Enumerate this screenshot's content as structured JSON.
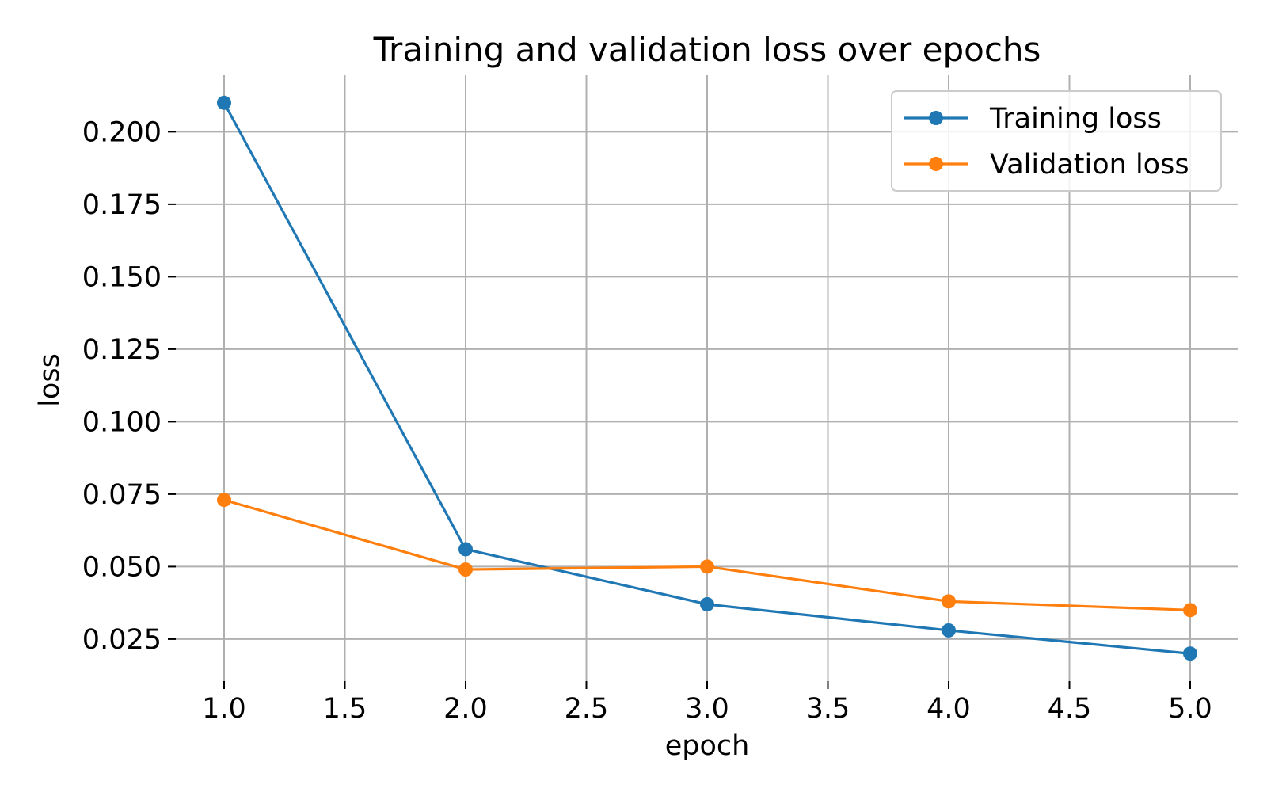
{
  "chart_data": {
    "type": "line",
    "title": "Training and validation loss over epochs",
    "xlabel": "epoch",
    "ylabel": "loss",
    "xlim": [
      0.8,
      5.2
    ],
    "ylim": [
      0.0105,
      0.2195
    ],
    "x_ticks": [
      1.0,
      1.5,
      2.0,
      2.5,
      3.0,
      3.5,
      4.0,
      4.5,
      5.0
    ],
    "x_tick_labels": [
      "1.0",
      "1.5",
      "2.0",
      "2.5",
      "3.0",
      "3.5",
      "4.0",
      "4.5",
      "5.0"
    ],
    "y_ticks": [
      0.025,
      0.05,
      0.075,
      0.1,
      0.125,
      0.15,
      0.175,
      0.2
    ],
    "y_tick_labels": [
      "0.025",
      "0.050",
      "0.075",
      "0.100",
      "0.125",
      "0.150",
      "0.175",
      "0.200"
    ],
    "grid": true,
    "legend": "top-right",
    "x": [
      1,
      2,
      3,
      4,
      5
    ],
    "series": [
      {
        "name": "Training loss",
        "values": [
          0.21,
          0.056,
          0.037,
          0.028,
          0.02
        ],
        "color": "#1f77b4",
        "marker": "circle"
      },
      {
        "name": "Validation loss",
        "values": [
          0.073,
          0.049,
          0.05,
          0.038,
          0.035
        ],
        "color": "#ff7f0e",
        "marker": "circle"
      }
    ]
  }
}
